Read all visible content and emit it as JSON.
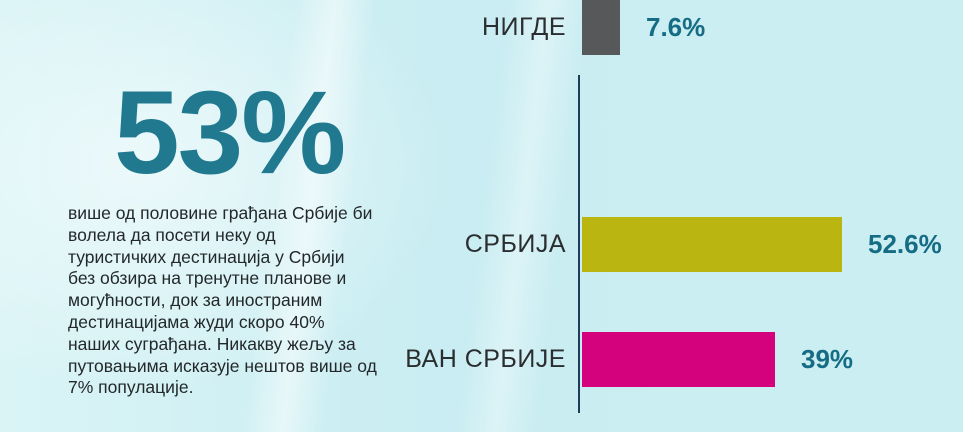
{
  "left_panel": {
    "headline": "53%",
    "headline_color": "#20798f",
    "description": "више од половине грађана Србије би\nволела да посети неку од\nтуристичких дестинација у Србији\nбез обзира на тренутне планове и\nмогућности, док за иностраним\nдестинацијама жуди скоро 40%\nнаших суграђана. Никакву жељу за\nпутовањима исказује нештов више од\n7% популације."
  },
  "chart_data": {
    "type": "bar",
    "orientation": "horizontal",
    "title": "",
    "xlabel": "",
    "ylabel": "",
    "xlim": [
      0,
      55
    ],
    "grid": false,
    "legend": false,
    "categories": [
      "СРБИЈА",
      "ВАН СРБИЈЕ",
      "НИГДЕ"
    ],
    "values": [
      52.6,
      39,
      7.6
    ],
    "value_labels": [
      "52.6%",
      "39%",
      "7.6%"
    ],
    "axis_color": "#1d3d5a",
    "value_label_color": "#156c84",
    "bars": [
      {
        "label": "СРБИЈА",
        "value": 52.6,
        "value_label": "52.6%",
        "color": "#bbb511"
      },
      {
        "label": "ВАН СРБИЈЕ",
        "value": 39,
        "value_label": "39%",
        "color": "#d5027e"
      },
      {
        "label": "НИГДЕ",
        "value": 7.6,
        "value_label": "7.6%",
        "color": "#56585a"
      }
    ]
  }
}
